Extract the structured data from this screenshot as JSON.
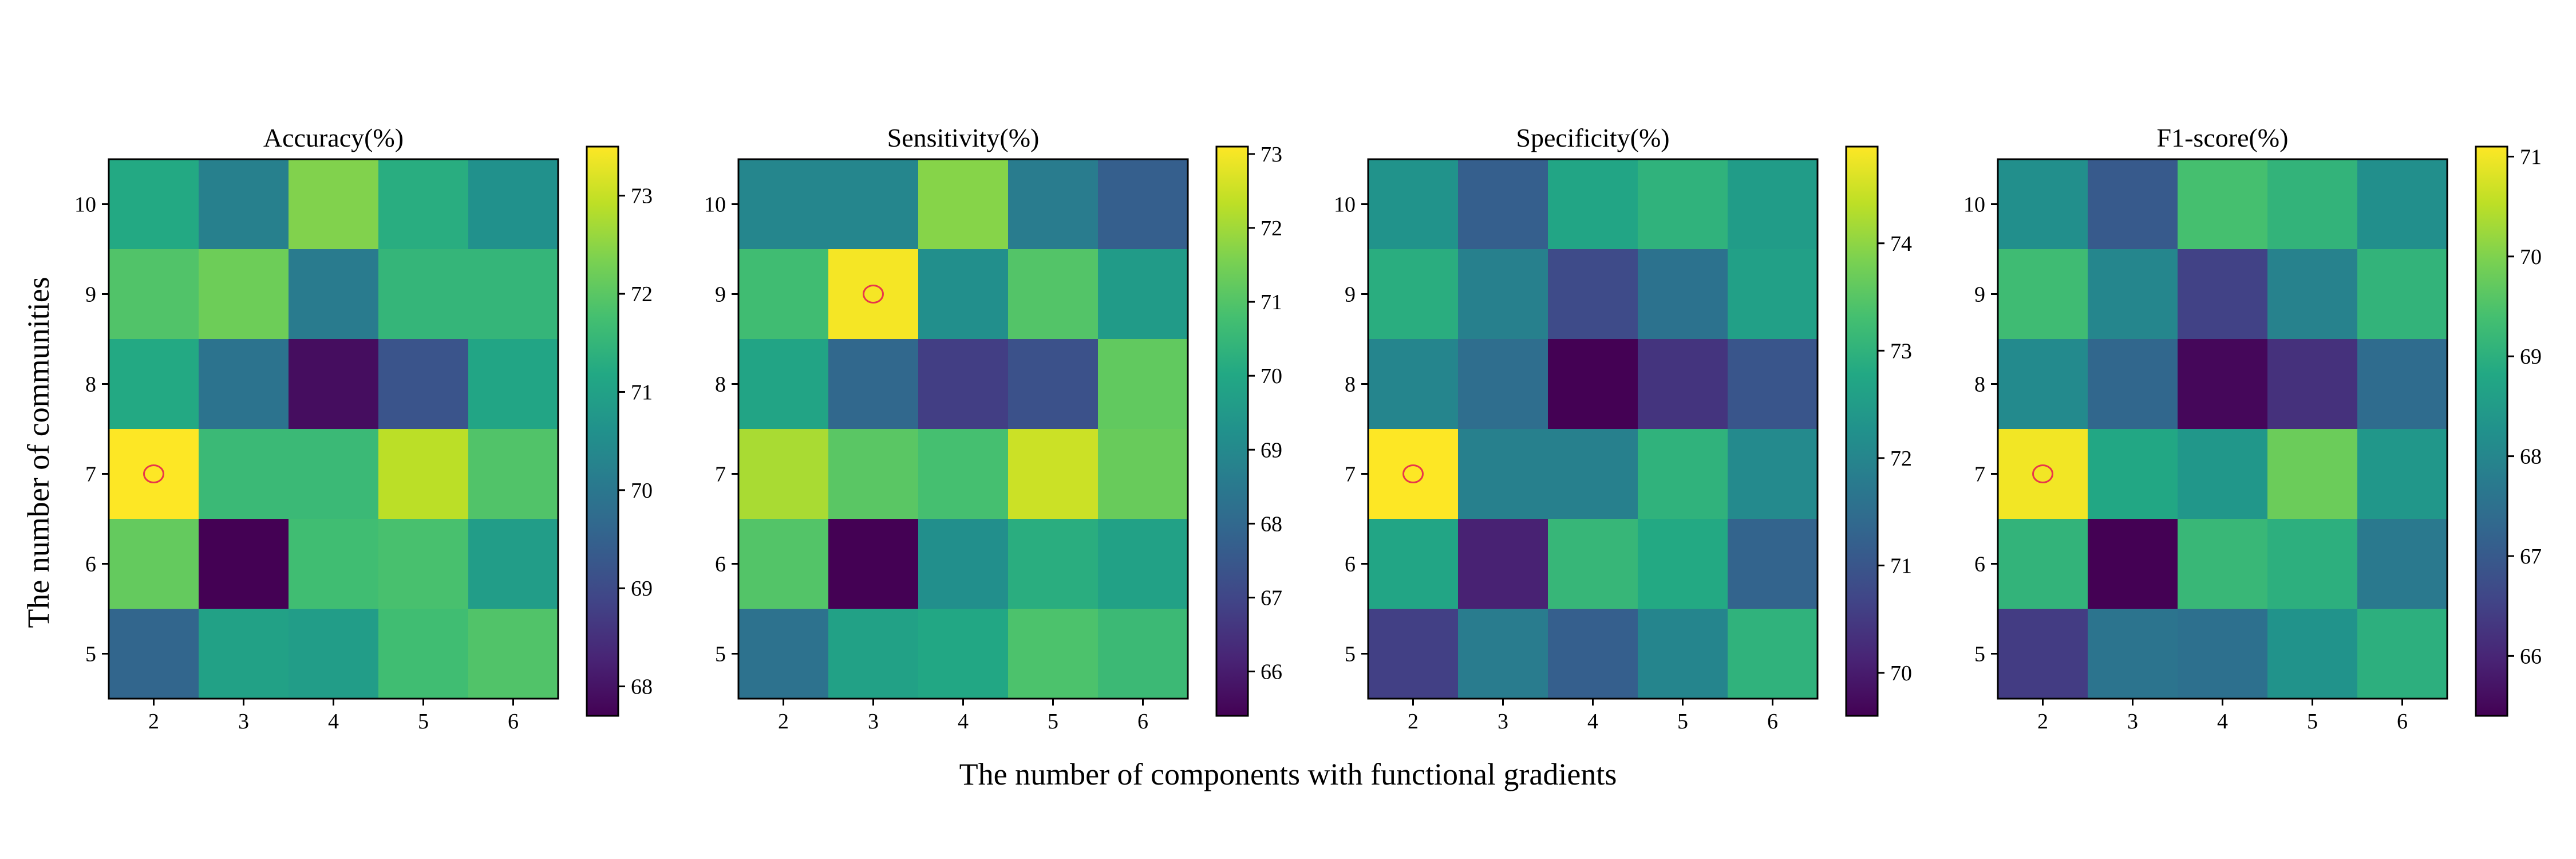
{
  "figure": {
    "xlabel": "The number of components with functional gradients",
    "ylabel": "The number of communities"
  },
  "colors": {
    "colormap": "viridis",
    "marker": "#e8364a",
    "frame": "#000000"
  },
  "chart_data": [
    {
      "type": "heatmap",
      "title": "Accuracy(%)",
      "x": [
        2,
        3,
        4,
        5,
        6
      ],
      "y": [
        10,
        9,
        8,
        7,
        6,
        5
      ],
      "values": [
        [
          71.2,
          70.2,
          72.4,
          71.3,
          70.6
        ],
        [
          71.9,
          72.2,
          70.1,
          71.5,
          71.5
        ],
        [
          71.2,
          69.9,
          67.9,
          69.2,
          71.1
        ],
        [
          73.5,
          71.6,
          71.6,
          72.9,
          71.9
        ],
        [
          72.1,
          67.7,
          71.7,
          71.8,
          70.9
        ],
        [
          69.6,
          71.0,
          70.9,
          71.7,
          71.9
        ]
      ],
      "colorbar": {
        "min": 67.7,
        "max": 73.5,
        "ticks": [
          "68",
          "69",
          "70",
          "71",
          "72",
          "73"
        ]
      },
      "marker": {
        "x": 2,
        "y": 7,
        "shape": "circle"
      }
    },
    {
      "type": "heatmap",
      "title": "Sensitivity(%)",
      "x": [
        2,
        3,
        4,
        5,
        6
      ],
      "y": [
        10,
        9,
        8,
        7,
        6,
        5
      ],
      "values": [
        [
          68.9,
          68.9,
          71.7,
          68.6,
          67.7
        ],
        [
          70.7,
          73.0,
          69.2,
          71.0,
          69.6
        ],
        [
          69.9,
          68.0,
          66.8,
          67.3,
          71.2
        ],
        [
          72.1,
          71.1,
          70.8,
          72.5,
          71.3
        ],
        [
          71.0,
          65.4,
          69.2,
          70.2,
          69.8
        ],
        [
          68.3,
          69.8,
          70.0,
          70.9,
          70.6
        ]
      ],
      "colorbar": {
        "min": 65.4,
        "max": 73.1,
        "ticks": [
          "66",
          "67",
          "68",
          "69",
          "70",
          "71",
          "72",
          "73"
        ]
      },
      "marker": {
        "x": 3,
        "y": 9,
        "shape": "circle"
      }
    },
    {
      "type": "heatmap",
      "title": "Specificity(%)",
      "x": [
        2,
        3,
        4,
        5,
        6
      ],
      "y": [
        10,
        9,
        8,
        7,
        6,
        5
      ],
      "values": [
        [
          72.3,
          71.2,
          72.7,
          73.0,
          72.5
        ],
        [
          72.9,
          71.9,
          70.8,
          71.6,
          72.6
        ],
        [
          72.0,
          71.5,
          69.6,
          70.4,
          71.0
        ],
        [
          74.9,
          71.9,
          71.9,
          73.0,
          72.1
        ],
        [
          72.7,
          70.1,
          73.1,
          72.8,
          71.3
        ],
        [
          70.6,
          71.8,
          71.2,
          72.0,
          73.0
        ]
      ],
      "colorbar": {
        "min": 69.6,
        "max": 74.9,
        "ticks": [
          "70",
          "71",
          "72",
          "73",
          "74"
        ]
      },
      "marker": {
        "x": 2,
        "y": 7,
        "shape": "circle"
      }
    },
    {
      "type": "heatmap",
      "title": "F1-score(%)",
      "x": [
        2,
        3,
        4,
        5,
        6
      ],
      "y": [
        10,
        9,
        8,
        7,
        6,
        5
      ],
      "values": [
        [
          68.2,
          67.0,
          69.4,
          69.1,
          68.2
        ],
        [
          69.3,
          68.0,
          66.5,
          67.9,
          69.1
        ],
        [
          68.1,
          67.3,
          65.5,
          66.2,
          67.4
        ],
        [
          71.0,
          68.8,
          68.4,
          69.8,
          68.4
        ],
        [
          69.1,
          65.4,
          69.2,
          69.0,
          67.7
        ],
        [
          66.4,
          67.6,
          67.5,
          68.3,
          69.0
        ]
      ],
      "colorbar": {
        "min": 65.4,
        "max": 71.1,
        "ticks": [
          "66",
          "67",
          "68",
          "69",
          "70",
          "71"
        ]
      },
      "marker": {
        "x": 2,
        "y": 7,
        "shape": "circle"
      }
    }
  ]
}
